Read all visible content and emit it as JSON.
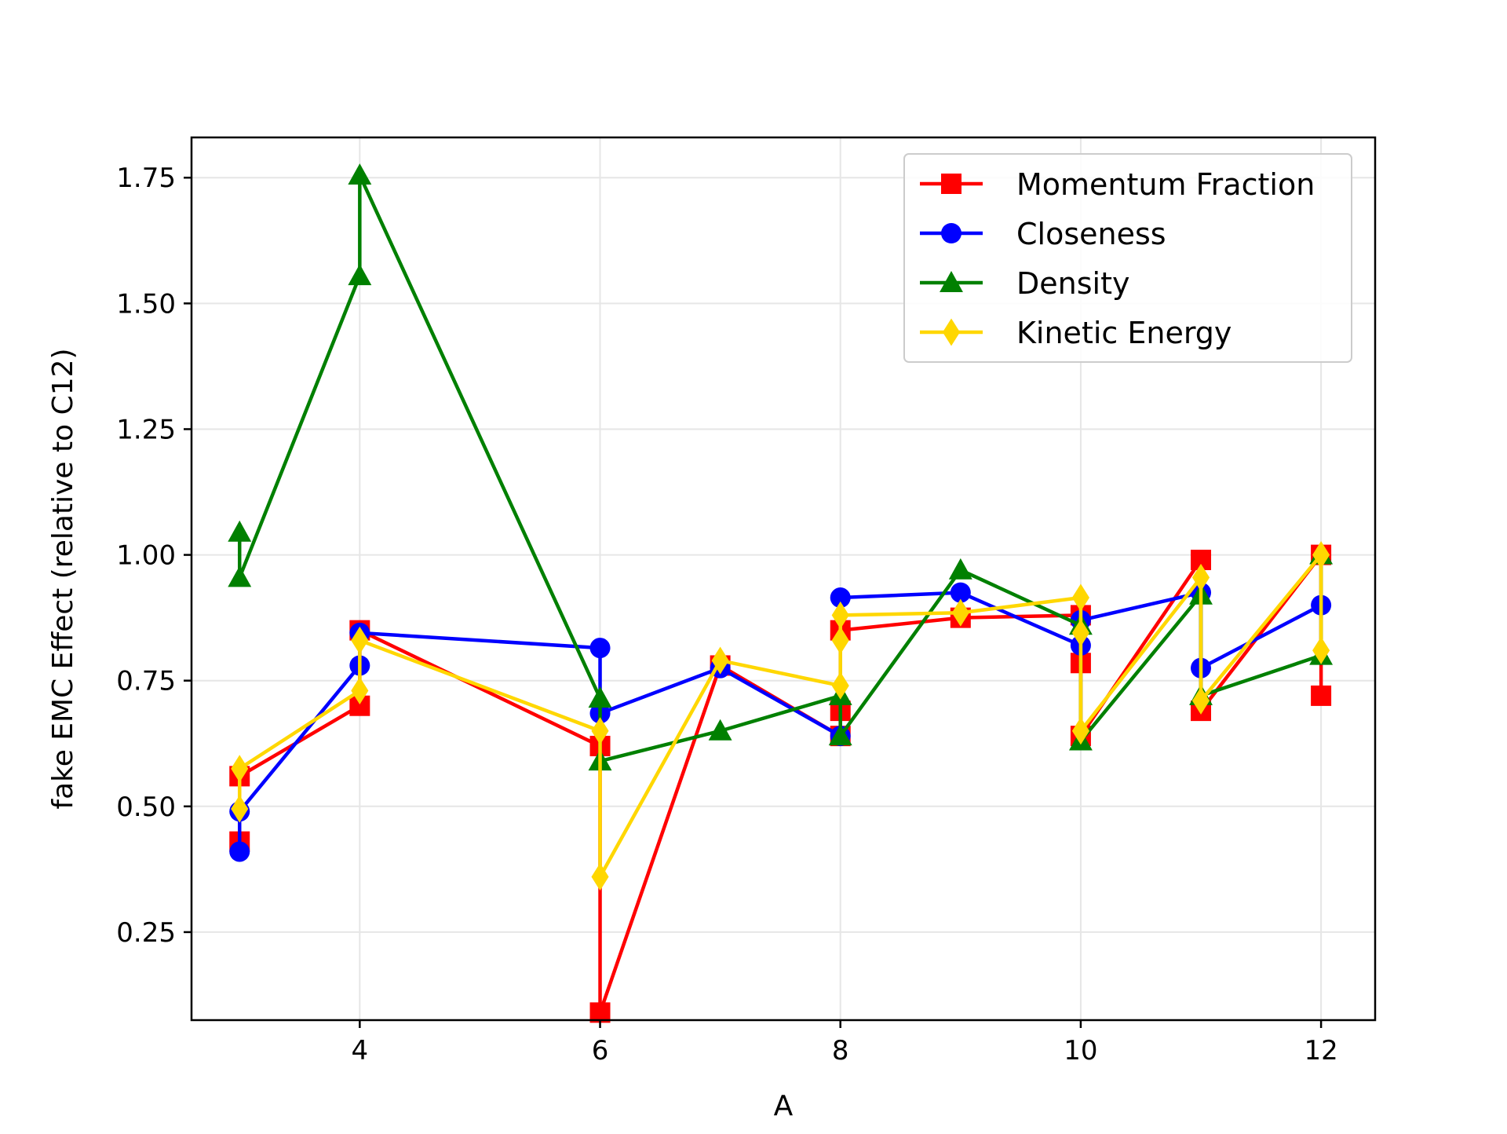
{
  "chart_data": {
    "type": "line",
    "title": "",
    "xlabel": "A",
    "ylabel": "fake EMC Effect (relative to C12)",
    "xlim": [
      2.6,
      12.45
    ],
    "ylim": [
      0.075,
      1.83
    ],
    "xticks": [
      4,
      6,
      8,
      10,
      12
    ],
    "yticks": [
      0.25,
      0.5,
      0.75,
      1.0,
      1.25,
      1.5,
      1.75
    ],
    "ytick_labels": [
      "0.25",
      "0.50",
      "0.75",
      "1.00",
      "1.25",
      "1.50",
      "1.75"
    ],
    "grid": true,
    "legend_position": "top-right",
    "series": [
      {
        "name": "Momentum Fraction",
        "color": "#ff0000",
        "marker": "square",
        "x": [
          3,
          3,
          4,
          4,
          6,
          6,
          7,
          8,
          8,
          8,
          9,
          10,
          10,
          10,
          11,
          11,
          12,
          12
        ],
        "y": [
          0.43,
          0.56,
          0.7,
          0.85,
          0.62,
          0.09,
          0.78,
          0.64,
          0.69,
          0.85,
          0.875,
          0.88,
          0.785,
          0.64,
          0.99,
          0.69,
          1.0,
          0.72
        ]
      },
      {
        "name": "Closeness",
        "color": "#0000ff",
        "marker": "circle",
        "x": [
          3,
          3,
          4,
          4,
          6,
          6,
          7,
          8,
          8,
          9,
          10,
          10,
          11,
          11,
          12
        ],
        "y": [
          0.41,
          0.49,
          0.78,
          0.845,
          0.815,
          0.685,
          0.775,
          0.64,
          0.915,
          0.925,
          0.82,
          0.87,
          0.925,
          0.775,
          0.9
        ]
      },
      {
        "name": "Density",
        "color": "#008000",
        "marker": "triangle",
        "x": [
          3,
          3,
          4,
          4,
          6,
          6,
          7,
          8,
          8,
          9,
          10,
          10,
          11,
          11,
          12,
          12
        ],
        "y": [
          1.045,
          0.955,
          1.555,
          1.755,
          0.715,
          0.59,
          0.65,
          0.72,
          0.64,
          0.97,
          0.86,
          0.63,
          0.92,
          0.72,
          0.8,
          1.0
        ]
      },
      {
        "name": "Kinetic Energy",
        "color": "#ffd700",
        "marker": "diamond",
        "x": [
          3,
          3,
          4,
          4,
          6,
          6,
          7,
          8,
          8,
          8,
          9,
          10,
          10,
          10,
          11,
          11,
          12,
          12
        ],
        "y": [
          0.495,
          0.575,
          0.73,
          0.83,
          0.65,
          0.36,
          0.79,
          0.74,
          0.83,
          0.88,
          0.885,
          0.915,
          0.845,
          0.65,
          0.955,
          0.71,
          1.0,
          0.81
        ]
      }
    ]
  }
}
